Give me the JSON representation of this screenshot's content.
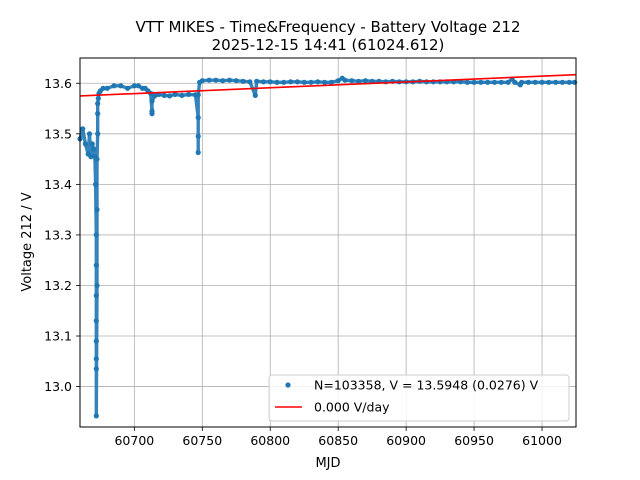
{
  "chart_data": {
    "type": "scatter",
    "title": "VTT MIKES - Time&Frequency - Battery Voltage 212",
    "subtitle": "2025-12-15 14:41 (61024.612)",
    "xlabel": "MJD",
    "ylabel": "Voltage 212 / V",
    "xlim": [
      60660,
      61025
    ],
    "ylim": [
      12.92,
      13.65
    ],
    "grid": true,
    "legend_position": "lower-right",
    "x_ticks": [
      "60700",
      "60750",
      "60800",
      "60850",
      "60900",
      "60950",
      "61000"
    ],
    "y_ticks": [
      "13.0",
      "13.1",
      "13.2",
      "13.3",
      "13.4",
      "13.5",
      "13.6"
    ],
    "series": [
      {
        "name": "N=103358, V = 13.5948 (0.0276) V",
        "kind": "points",
        "color": "#1f77b4",
        "x": [
          60660,
          60662,
          60664,
          60666,
          60667,
          60668,
          60669,
          60670,
          60671,
          60671.5,
          60672,
          60672,
          60672,
          60672,
          60672,
          60672,
          60672,
          60672,
          60672.5,
          60672.5,
          60672.5,
          60673,
          60673,
          60673,
          60673.5,
          60674,
          60675,
          60677,
          60680,
          60685,
          60690,
          60695,
          60700,
          60703,
          60706,
          60708,
          60710,
          60712,
          60713,
          60713,
          60713,
          60715,
          60718,
          60722,
          60726,
          60730,
          60735,
          60740,
          60745,
          60747,
          60747,
          60747,
          60747,
          60748,
          60750,
          60755,
          60760,
          60765,
          60770,
          60775,
          60780,
          60785,
          60789,
          60790,
          60795,
          60800,
          60805,
          60810,
          60815,
          60820,
          60825,
          60830,
          60835,
          60840,
          60845,
          60850,
          60853,
          60855,
          60860,
          60865,
          60870,
          60875,
          60880,
          60885,
          60890,
          60895,
          60900,
          60905,
          60910,
          60915,
          60920,
          60925,
          60930,
          60935,
          60940,
          60945,
          60950,
          60955,
          60960,
          60965,
          60970,
          60975,
          60978,
          60980,
          60984,
          60985,
          60990,
          60995,
          61000,
          61005,
          61010,
          61015,
          61020,
          61024
        ],
        "y": [
          13.49,
          13.51,
          13.48,
          13.46,
          13.5,
          13.455,
          13.48,
          13.47,
          13.455,
          13.4,
          13.3,
          13.24,
          13.18,
          13.13,
          13.09,
          13.055,
          13.035,
          12.942,
          13.2,
          13.35,
          13.45,
          13.5,
          13.54,
          13.56,
          13.57,
          13.58,
          13.585,
          13.59,
          13.59,
          13.595,
          13.595,
          13.59,
          13.595,
          13.595,
          13.59,
          13.59,
          13.585,
          13.58,
          13.545,
          13.54,
          13.565,
          13.575,
          13.578,
          13.576,
          13.575,
          13.578,
          13.576,
          13.578,
          13.577,
          13.532,
          13.495,
          13.463,
          13.577,
          13.602,
          13.605,
          13.606,
          13.606,
          13.605,
          13.606,
          13.605,
          13.604,
          13.603,
          13.576,
          13.604,
          13.603,
          13.603,
          13.602,
          13.602,
          13.603,
          13.603,
          13.602,
          13.602,
          13.603,
          13.602,
          13.602,
          13.605,
          13.61,
          13.606,
          13.605,
          13.604,
          13.605,
          13.604,
          13.604,
          13.603,
          13.604,
          13.603,
          13.603,
          13.603,
          13.604,
          13.603,
          13.603,
          13.603,
          13.603,
          13.603,
          13.603,
          13.602,
          13.602,
          13.602,
          13.602,
          13.602,
          13.602,
          13.602,
          13.608,
          13.602,
          13.597,
          13.602,
          13.602,
          13.602,
          13.602,
          13.602,
          13.602,
          13.602,
          13.602,
          13.602
        ]
      },
      {
        "name": "0.000 V/day",
        "kind": "line",
        "color": "#ff0000",
        "x": [
          60660,
          61025
        ],
        "y": [
          13.575,
          13.617
        ]
      }
    ]
  }
}
